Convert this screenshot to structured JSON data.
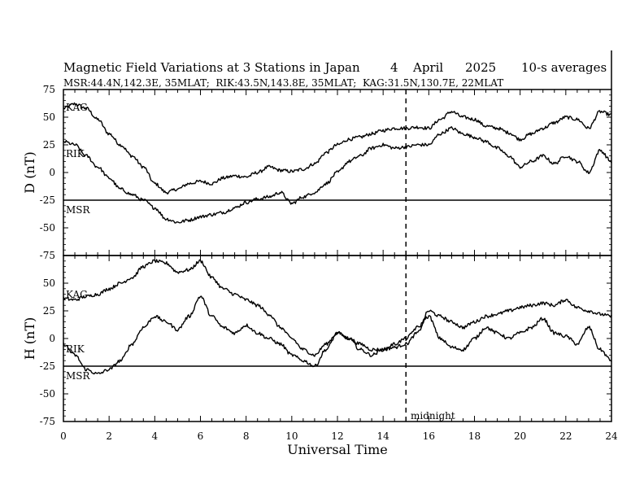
{
  "title": "Magnetic Field Variations at 3 Stations in Japan",
  "title_day": "4",
  "title_month": "April",
  "title_year": "2025",
  "title_avg": "10-s averages",
  "subtitle": "MSR:44.4N,142.3E, 35MLAT;  RIK:43.5N,143.8E, 35MLAT;  KAG:31.5N,130.7E, 22MLAT",
  "xlabel": "Universal Time",
  "midnight_label": "midnight",
  "colors": {
    "line": "#000000",
    "background": "#ffffff"
  },
  "chart_data": [
    {
      "type": "line",
      "panel": "D",
      "ylabel": "D (nT)",
      "xlim": [
        0,
        24
      ],
      "ylim": [
        -75,
        75
      ],
      "xticks": [
        0,
        2,
        4,
        6,
        8,
        10,
        12,
        14,
        16,
        18,
        20,
        22,
        24
      ],
      "yticks": [
        75,
        50,
        25,
        0,
        -25,
        -50,
        -75
      ],
      "ytick_labels": [
        "75",
        "50",
        "25",
        "0",
        "-25",
        "-50",
        "-75"
      ],
      "baseline_y": -25,
      "midnight_x": 15,
      "series": [
        {
          "name": "KAG",
          "x": [
            0,
            0.5,
            1,
            1.5,
            2,
            2.5,
            3,
            3.5,
            4,
            4.5,
            5,
            5.5,
            6,
            6.5,
            7,
            7.5,
            8,
            8.5,
            9,
            9.5,
            10,
            10.5,
            11,
            11.5,
            12,
            12.5,
            13,
            13.5,
            14,
            14.5,
            15,
            15.5,
            16,
            16.5,
            17,
            17.5,
            18,
            18.5,
            19,
            19.5,
            20,
            20.5,
            21,
            21.5,
            22,
            22.5,
            23,
            23.5,
            24
          ],
          "values": [
            58,
            62,
            58,
            48,
            35,
            25,
            15,
            5,
            -10,
            -18,
            -15,
            -10,
            -8,
            -10,
            -5,
            -3,
            -4,
            0,
            5,
            2,
            1,
            3,
            8,
            18,
            25,
            30,
            32,
            35,
            38,
            40,
            40,
            41,
            40,
            48,
            55,
            50,
            48,
            42,
            40,
            36,
            30,
            35,
            40,
            45,
            50,
            48,
            40,
            55,
            52
          ]
        },
        {
          "name": "RIK",
          "x": [
            0,
            0.5,
            1,
            1.5,
            2,
            2.5,
            3,
            3.5,
            4,
            4.5,
            5,
            5.5,
            6,
            6.5,
            7,
            7.5,
            8,
            8.5,
            9,
            9.5,
            10,
            10.5,
            11,
            11.5,
            12,
            12.5,
            13,
            13.5,
            14,
            14.5,
            15,
            15.5,
            16,
            16.5,
            17,
            17.5,
            18,
            18.5,
            19,
            19.5,
            20,
            20.5,
            21,
            21.5,
            22,
            22.5,
            23,
            23.5,
            24
          ],
          "values": [
            28,
            25,
            15,
            5,
            -5,
            -15,
            -20,
            -25,
            -32,
            -42,
            -45,
            -43,
            -40,
            -38,
            -36,
            -32,
            -27,
            -24,
            -22,
            -18,
            -28,
            -22,
            -18,
            -10,
            0,
            10,
            15,
            22,
            25,
            22,
            23,
            25,
            25,
            35,
            40,
            35,
            32,
            28,
            22,
            15,
            5,
            10,
            15,
            8,
            15,
            10,
            0,
            20,
            10
          ]
        },
        {
          "name": "MSR",
          "x": [
            0,
            24
          ],
          "values": [
            -25,
            -25
          ]
        }
      ]
    },
    {
      "type": "line",
      "panel": "H",
      "ylabel": "H (nT)",
      "xlim": [
        0,
        24
      ],
      "ylim": [
        -75,
        75
      ],
      "xticks": [
        0,
        2,
        4,
        6,
        8,
        10,
        12,
        14,
        16,
        18,
        20,
        22,
        24
      ],
      "yticks": [
        50,
        25,
        0,
        -25,
        -50,
        -75
      ],
      "ytick_labels": [
        "50",
        "25",
        "0",
        "-25",
        "-50",
        "-75"
      ],
      "baseline_y": -25,
      "midnight_x": 15,
      "series": [
        {
          "name": "KAG",
          "x": [
            0,
            0.5,
            1,
            1.5,
            2,
            2.5,
            3,
            3.5,
            4,
            4.5,
            5,
            5.5,
            6,
            6.5,
            7,
            7.5,
            8,
            8.5,
            9,
            9.5,
            10,
            10.5,
            11,
            11.5,
            12,
            12.5,
            13,
            13.5,
            14,
            14.5,
            15,
            15.5,
            16,
            16.5,
            17,
            17.5,
            18,
            18.5,
            19,
            19.5,
            20,
            20.5,
            21,
            21.5,
            22,
            22.5,
            23,
            23.5,
            24
          ],
          "values": [
            36,
            35,
            38,
            40,
            45,
            50,
            55,
            65,
            70,
            68,
            60,
            62,
            70,
            55,
            45,
            40,
            35,
            30,
            22,
            10,
            0,
            -10,
            -15,
            -5,
            5,
            0,
            -5,
            -10,
            -10,
            -8,
            -5,
            5,
            25,
            20,
            15,
            10,
            15,
            20,
            22,
            25,
            28,
            30,
            32,
            30,
            35,
            28,
            25,
            22,
            20
          ]
        },
        {
          "name": "RIK",
          "x": [
            0,
            0.5,
            1,
            1.5,
            2,
            2.5,
            3,
            3.5,
            4,
            4.5,
            5,
            5.5,
            6,
            6.5,
            7,
            7.5,
            8,
            8.5,
            9,
            9.5,
            10,
            10.5,
            11,
            11.5,
            12,
            12.5,
            13,
            13.5,
            14,
            14.5,
            15,
            15.5,
            16,
            16.5,
            17,
            17.5,
            18,
            18.5,
            19,
            19.5,
            20,
            20.5,
            21,
            21.5,
            22,
            22.5,
            23,
            23.5,
            24
          ],
          "values": [
            -5,
            -15,
            -28,
            -32,
            -28,
            -20,
            -5,
            10,
            20,
            15,
            8,
            20,
            38,
            20,
            10,
            5,
            12,
            5,
            0,
            -5,
            -15,
            -20,
            -25,
            -10,
            5,
            0,
            -10,
            -15,
            -10,
            -5,
            0,
            10,
            20,
            0,
            -8,
            -10,
            0,
            10,
            5,
            0,
            5,
            10,
            18,
            5,
            2,
            -5,
            10,
            -10,
            -20
          ]
        },
        {
          "name": "MSR",
          "x": [
            0,
            24
          ],
          "values": [
            -25,
            -25
          ]
        }
      ]
    }
  ]
}
